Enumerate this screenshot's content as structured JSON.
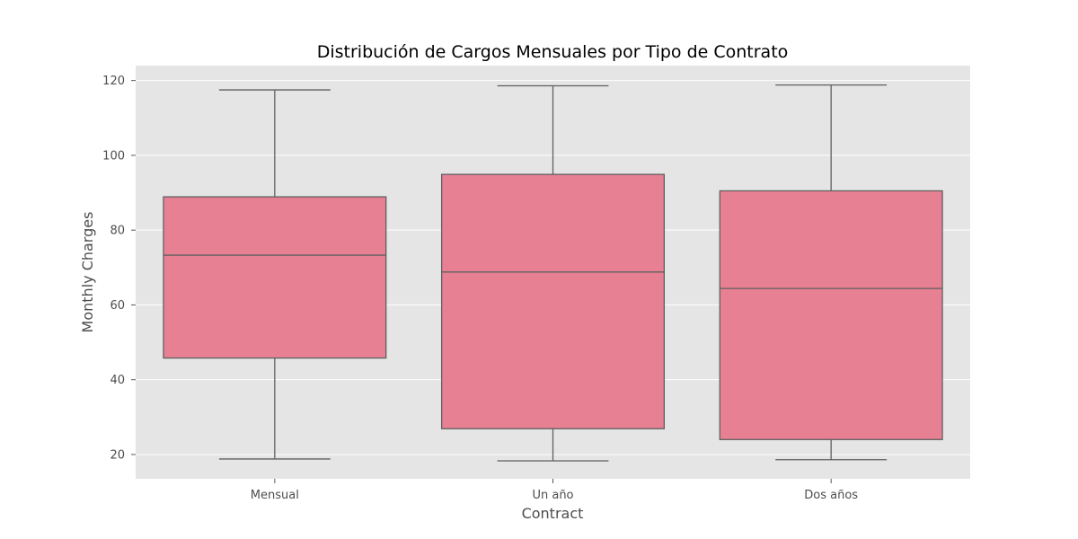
{
  "chart_data": {
    "type": "box",
    "title": "Distribución de Cargos Mensuales por Tipo de Contrato",
    "xlabel": "Contract",
    "ylabel": "Monthly Charges",
    "categories": [
      "Mensual",
      "Un año",
      "Dos años"
    ],
    "ylim": [
      13.5,
      124
    ],
    "yticks": [
      20,
      40,
      60,
      80,
      100,
      120
    ],
    "grid": true,
    "boxes": [
      {
        "category": "Mensual",
        "whisker_low": 18.8,
        "q1": 45.8,
        "median": 73.3,
        "q3": 88.9,
        "whisker_high": 117.5
      },
      {
        "category": "Un año",
        "whisker_low": 18.3,
        "q1": 26.9,
        "median": 68.8,
        "q3": 94.9,
        "whisker_high": 118.6
      },
      {
        "category": "Dos años",
        "whisker_low": 18.6,
        "q1": 24.0,
        "median": 64.4,
        "q3": 90.5,
        "whisker_high": 118.8
      }
    ],
    "colors": {
      "box_fill": "#e88093",
      "box_edge": "#5f5f5f",
      "plot_background": "#e5e5e5",
      "grid": "#ffffff"
    }
  }
}
